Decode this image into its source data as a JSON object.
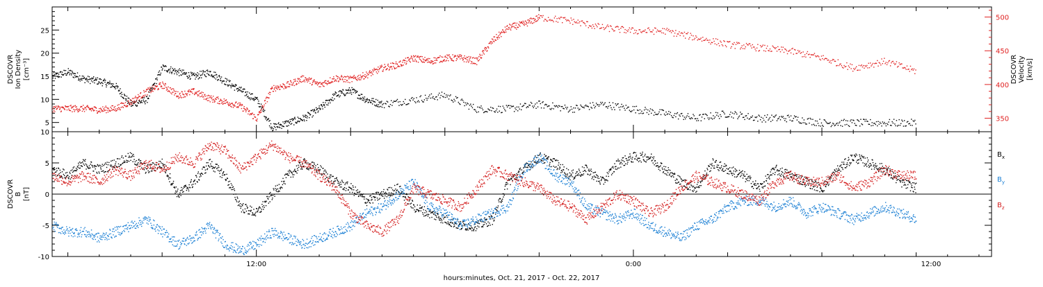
{
  "xlabel": "hours:minutes, Oct. 21, 2017 - Oct. 22, 2017",
  "x_tick_labels": [
    "12:00",
    "0:00",
    "12:00"
  ],
  "top_panel": {
    "left_axis_label": [
      "DSCOVR",
      "Ion Density",
      "[cm⁻³]"
    ],
    "left_ticks": [
      "5",
      "10",
      "15",
      "20",
      "25"
    ],
    "right_axis_label": [
      "DSCOVR",
      "Velocity",
      "[km/s]"
    ],
    "right_ticks": [
      "350",
      "400",
      "450",
      "500"
    ]
  },
  "bottom_panel": {
    "left_axis_label": [
      "DSCOVR",
      "B",
      "[nT]"
    ],
    "left_ticks": [
      "-10",
      "-5",
      "0",
      "5",
      "10"
    ],
    "legend": [
      {
        "base": "B",
        "sub": "x",
        "color": "#000000"
      },
      {
        "base": "B",
        "sub": "y",
        "color": "#1a7fd4"
      },
      {
        "base": "B",
        "sub": "z",
        "color": "#d42020"
      }
    ]
  },
  "colors": {
    "density": "#000000",
    "velocity": "#e02020",
    "bx": "#000000",
    "by": "#1a7fd4",
    "bz": "#d42020"
  },
  "chart_data": [
    {
      "type": "scatter",
      "x_unit": "hours since Oct 21 00:00 UT",
      "xlim": [
        5.5,
        35.4
      ],
      "ylabel": "Ion Density",
      "y2label": "Velocity",
      "ylim": [
        3,
        30
      ],
      "y2lim": [
        330,
        515
      ],
      "grid": false,
      "series": [
        {
          "name": "Ion Density",
          "axis": "left",
          "x": [
            5.5,
            6.0,
            6.5,
            7.0,
            7.5,
            8.0,
            8.5,
            9.0,
            9.5,
            10.0,
            10.5,
            11.0,
            11.5,
            12.0,
            12.5,
            13.0,
            13.5,
            14.0,
            14.5,
            15.0,
            15.5,
            16.0,
            17.0,
            18.0,
            19.0,
            20.0,
            21.0,
            22.0,
            23.0,
            24.0,
            25.0,
            26.0,
            27.0,
            28.0,
            29.0,
            30.0,
            31.0,
            32.0,
            33.0
          ],
          "values": [
            15,
            16,
            14.5,
            14,
            13,
            9,
            10,
            17,
            16,
            15,
            16,
            14,
            12,
            10,
            4,
            5,
            6,
            8,
            11,
            12,
            10,
            9,
            10,
            11,
            8,
            8,
            9,
            8,
            9,
            8,
            7,
            6,
            7,
            6,
            6,
            5,
            5,
            5,
            5
          ]
        },
        {
          "name": "Velocity",
          "axis": "right",
          "x": [
            5.5,
            6.0,
            6.5,
            7.0,
            7.5,
            8.0,
            8.5,
            9.0,
            9.5,
            10.0,
            10.5,
            11.0,
            11.5,
            12.0,
            12.5,
            13.0,
            13.5,
            14.0,
            14.5,
            15.0,
            15.5,
            16.0,
            16.5,
            17.0,
            17.5,
            18.0,
            18.5,
            19.0,
            19.5,
            20.0,
            20.5,
            21.0,
            22.0,
            23.0,
            24.0,
            25.0,
            26.0,
            27.0,
            28.0,
            29.0,
            30.0,
            31.0,
            32.0,
            33.0
          ],
          "values": [
            365,
            365,
            365,
            363,
            365,
            375,
            390,
            400,
            385,
            390,
            380,
            375,
            368,
            350,
            395,
            400,
            410,
            400,
            410,
            408,
            415,
            425,
            430,
            440,
            435,
            440,
            440,
            435,
            465,
            485,
            490,
            500,
            495,
            485,
            480,
            480,
            470,
            460,
            455,
            450,
            440,
            425,
            435,
            420
          ]
        }
      ]
    },
    {
      "type": "scatter",
      "x_unit": "hours since Oct 21 00:00 UT",
      "xlim": [
        5.5,
        35.4
      ],
      "ylabel": "B",
      "ylim": [
        -10,
        10
      ],
      "grid": false,
      "hline": 0,
      "series": [
        {
          "name": "Bx",
          "x": [
            5.5,
            6.0,
            6.5,
            7.0,
            7.5,
            8.0,
            8.5,
            9.0,
            9.5,
            10.0,
            10.5,
            11.0,
            11.5,
            12.0,
            12.5,
            13.0,
            13.5,
            14.0,
            14.5,
            15.0,
            15.5,
            16.0,
            16.5,
            17.0,
            17.5,
            18.0,
            18.5,
            19.0,
            19.5,
            20.0,
            20.5,
            21.0,
            21.5,
            22.0,
            22.5,
            23.0,
            23.5,
            24.0,
            24.5,
            25.0,
            25.5,
            26.0,
            26.5,
            27.0,
            27.5,
            28.0,
            28.5,
            29.0,
            29.5,
            30.0,
            30.5,
            31.0,
            31.5,
            32.0,
            32.5,
            33.0
          ],
          "values": [
            4,
            3,
            5,
            4,
            5,
            6,
            4,
            5,
            0,
            2,
            5,
            3,
            -2,
            -3,
            0,
            3,
            5,
            4,
            2,
            1,
            -1,
            0,
            1,
            -2,
            -3,
            -4,
            -5,
            -5,
            -4,
            2,
            4,
            6,
            5,
            3,
            4,
            2,
            5,
            6,
            6,
            4,
            2,
            1,
            5,
            4,
            3,
            1,
            4,
            3,
            2,
            1,
            4,
            6,
            5,
            4,
            2,
            1
          ]
        },
        {
          "name": "By",
          "x": [
            5.5,
            6.0,
            6.5,
            7.0,
            7.5,
            8.0,
            8.5,
            9.0,
            9.5,
            10.0,
            10.5,
            11.0,
            11.5,
            12.0,
            12.5,
            13.0,
            13.5,
            14.0,
            14.5,
            15.0,
            15.5,
            16.0,
            16.5,
            17.0,
            17.5,
            18.0,
            18.5,
            19.0,
            19.5,
            20.0,
            20.5,
            21.0,
            21.5,
            22.0,
            22.5,
            23.0,
            23.5,
            24.0,
            24.5,
            25.0,
            25.5,
            26.0,
            26.5,
            27.0,
            27.5,
            28.0,
            28.5,
            29.0,
            29.5,
            30.0,
            30.5,
            31.0,
            31.5,
            32.0,
            32.5,
            33.0
          ],
          "values": [
            -5,
            -6,
            -6,
            -7,
            -6,
            -5,
            -4,
            -6,
            -8,
            -7,
            -5,
            -8,
            -9,
            -8,
            -6,
            -7,
            -8,
            -7,
            -6,
            -5,
            -3,
            -2,
            0,
            2,
            -2,
            -3,
            -5,
            -4,
            -3,
            -2,
            4,
            6,
            3,
            2,
            -2,
            -3,
            -4,
            -3,
            -5,
            -6,
            -7,
            -5,
            -4,
            -2,
            -1,
            -1,
            -2,
            -1,
            -3,
            -2,
            -3,
            -4,
            -3,
            -2,
            -3,
            -4
          ]
        },
        {
          "name": "Bz",
          "x": [
            5.5,
            6.0,
            6.5,
            7.0,
            7.5,
            8.0,
            8.5,
            9.0,
            9.5,
            10.0,
            10.5,
            11.0,
            11.5,
            12.0,
            12.5,
            13.0,
            13.5,
            14.0,
            14.5,
            15.0,
            15.5,
            16.0,
            16.5,
            17.0,
            17.5,
            18.0,
            18.5,
            19.0,
            19.5,
            20.0,
            20.5,
            21.0,
            21.5,
            22.0,
            22.5,
            23.0,
            23.5,
            24.0,
            24.5,
            25.0,
            25.5,
            26.0,
            26.5,
            27.0,
            27.5,
            28.0,
            28.5,
            29.0,
            29.5,
            30.0,
            30.5,
            31.0,
            31.5,
            32.0,
            32.5,
            33.0
          ],
          "values": [
            3,
            2,
            3,
            2,
            4,
            3,
            5,
            4,
            6,
            5,
            8,
            7,
            4,
            6,
            8,
            6,
            5,
            3,
            1,
            -3,
            -5,
            -6,
            -4,
            1,
            0,
            -1,
            -2,
            1,
            4,
            3,
            2,
            1,
            -1,
            -2,
            -4,
            -2,
            0,
            -1,
            -3,
            -2,
            1,
            3,
            2,
            1,
            0,
            -1,
            2,
            3,
            2,
            2,
            3,
            1,
            2,
            4,
            3,
            3
          ]
        }
      ]
    }
  ]
}
